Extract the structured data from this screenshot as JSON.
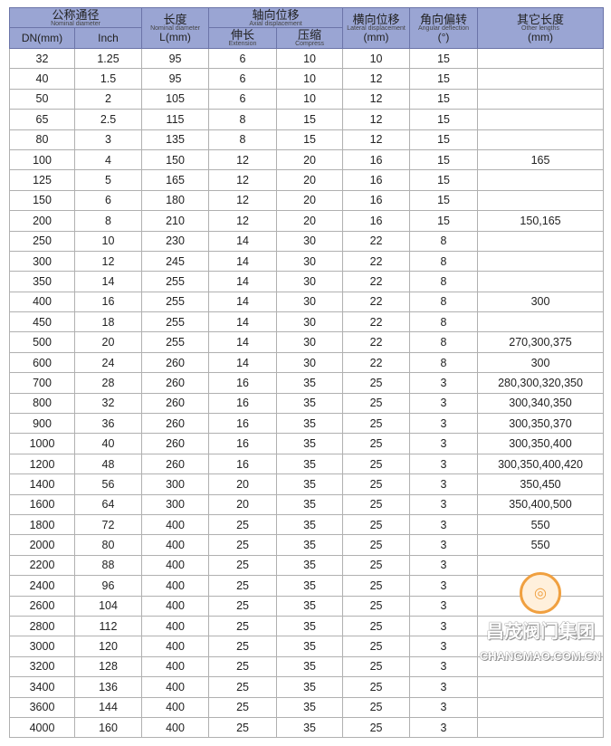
{
  "header": {
    "nominal_cn": "公称通径",
    "nominal_en": "Nominal diameter",
    "length_cn": "长度",
    "length_en": "Nominal diameter",
    "length_unit": "L(mm)",
    "axial_cn": "轴向位移",
    "axial_en": "Axial displacement",
    "lateral_cn": "横向位移",
    "lateral_en": "Lateral displacement",
    "lateral_unit": "(mm)",
    "angular_cn": "角向偏转",
    "angular_en": "Angular deflection",
    "angular_unit": "(°)",
    "other_cn": "其它长度",
    "other_en": "Other lengths",
    "other_unit": "(mm)",
    "dn": "DN(mm)",
    "inch": "Inch",
    "ext_cn": "伸长",
    "ext_en": "Extension",
    "comp_cn": "压缩",
    "comp_en": "Compress"
  },
  "rows": [
    [
      "32",
      "1.25",
      "95",
      "6",
      "10",
      "10",
      "15",
      ""
    ],
    [
      "40",
      "1.5",
      "95",
      "6",
      "10",
      "12",
      "15",
      ""
    ],
    [
      "50",
      "2",
      "105",
      "6",
      "10",
      "12",
      "15",
      ""
    ],
    [
      "65",
      "2.5",
      "115",
      "8",
      "15",
      "12",
      "15",
      ""
    ],
    [
      "80",
      "3",
      "135",
      "8",
      "15",
      "12",
      "15",
      ""
    ],
    [
      "100",
      "4",
      "150",
      "12",
      "20",
      "16",
      "15",
      "165"
    ],
    [
      "125",
      "5",
      "165",
      "12",
      "20",
      "16",
      "15",
      ""
    ],
    [
      "150",
      "6",
      "180",
      "12",
      "20",
      "16",
      "15",
      ""
    ],
    [
      "200",
      "8",
      "210",
      "12",
      "20",
      "16",
      "15",
      "150,165"
    ],
    [
      "250",
      "10",
      "230",
      "14",
      "30",
      "22",
      "8",
      ""
    ],
    [
      "300",
      "12",
      "245",
      "14",
      "30",
      "22",
      "8",
      ""
    ],
    [
      "350",
      "14",
      "255",
      "14",
      "30",
      "22",
      "8",
      ""
    ],
    [
      "400",
      "16",
      "255",
      "14",
      "30",
      "22",
      "8",
      "300"
    ],
    [
      "450",
      "18",
      "255",
      "14",
      "30",
      "22",
      "8",
      ""
    ],
    [
      "500",
      "20",
      "255",
      "14",
      "30",
      "22",
      "8",
      "270,300,375"
    ],
    [
      "600",
      "24",
      "260",
      "14",
      "30",
      "22",
      "8",
      "300"
    ],
    [
      "700",
      "28",
      "260",
      "16",
      "35",
      "25",
      "3",
      "280,300,320,350"
    ],
    [
      "800",
      "32",
      "260",
      "16",
      "35",
      "25",
      "3",
      "300,340,350"
    ],
    [
      "900",
      "36",
      "260",
      "16",
      "35",
      "25",
      "3",
      "300,350,370"
    ],
    [
      "1000",
      "40",
      "260",
      "16",
      "35",
      "25",
      "3",
      "300,350,400"
    ],
    [
      "1200",
      "48",
      "260",
      "16",
      "35",
      "25",
      "3",
      "300,350,400,420"
    ],
    [
      "1400",
      "56",
      "300",
      "20",
      "35",
      "25",
      "3",
      "350,450"
    ],
    [
      "1600",
      "64",
      "300",
      "20",
      "35",
      "25",
      "3",
      "350,400,500"
    ],
    [
      "1800",
      "72",
      "400",
      "25",
      "35",
      "25",
      "3",
      "550"
    ],
    [
      "2000",
      "80",
      "400",
      "25",
      "35",
      "25",
      "3",
      "550"
    ],
    [
      "2200",
      "88",
      "400",
      "25",
      "35",
      "25",
      "3",
      ""
    ],
    [
      "2400",
      "96",
      "400",
      "25",
      "35",
      "25",
      "3",
      ""
    ],
    [
      "2600",
      "104",
      "400",
      "25",
      "35",
      "25",
      "3",
      ""
    ],
    [
      "2800",
      "112",
      "400",
      "25",
      "35",
      "25",
      "3",
      ""
    ],
    [
      "3000",
      "120",
      "400",
      "25",
      "35",
      "25",
      "3",
      ""
    ],
    [
      "3200",
      "128",
      "400",
      "25",
      "35",
      "25",
      "3",
      ""
    ],
    [
      "3400",
      "136",
      "400",
      "25",
      "35",
      "25",
      "3",
      ""
    ],
    [
      "3600",
      "144",
      "400",
      "25",
      "35",
      "25",
      "3",
      ""
    ],
    [
      "4000",
      "160",
      "400",
      "25",
      "35",
      "25",
      "3",
      ""
    ]
  ],
  "watermark": {
    "name": "昌茂阀门集团",
    "url": "CHANGMAO.COM.CN",
    "seal": "昌茂"
  },
  "colors": {
    "header_bg": "#9aa5d3",
    "seal": "#f0a040"
  }
}
